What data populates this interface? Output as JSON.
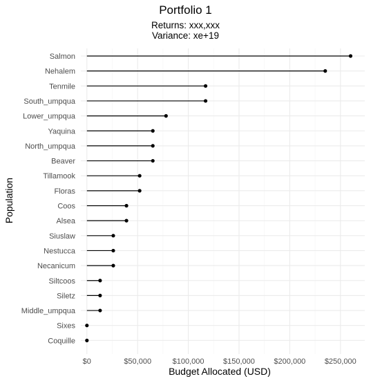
{
  "chart_data": {
    "type": "lollipop",
    "title": "Portfolio 1",
    "subtitle_lines": [
      "Returns: xxx,xxx",
      "Variance: xe+19"
    ],
    "xlabel": "Budget Allocated (USD)",
    "ylabel": "Population",
    "xlim": [
      -6000,
      274000
    ],
    "x_ticks": [
      0,
      50000,
      100000,
      150000,
      200000,
      250000
    ],
    "x_tick_labels": [
      "$0",
      "$50,000",
      "$100,000",
      "$150,000",
      "$200,000",
      "$250,000"
    ],
    "grid": true,
    "legend": "none",
    "categories": [
      "Salmon",
      "Nehalem",
      "Tenmile",
      "South_umpqua",
      "Lower_umpqua",
      "Yaquina",
      "North_umpqua",
      "Beaver",
      "Tillamook",
      "Floras",
      "Coos",
      "Alsea",
      "Siuslaw",
      "Nestucca",
      "Necanicum",
      "Siltcoos",
      "Siletz",
      "Middle_umpqua",
      "Sixes",
      "Coquille"
    ],
    "values": [
      260000,
      235000,
      117000,
      117000,
      78000,
      65000,
      65000,
      65000,
      52000,
      52000,
      39000,
      39000,
      26000,
      26000,
      26000,
      13000,
      13000,
      13000,
      0,
      0
    ],
    "colors": {
      "marks": "#000000",
      "grid_major": "#ebebeb",
      "grid_minor": "#f5f5f5",
      "tick_text": "#4d4d4d"
    }
  }
}
